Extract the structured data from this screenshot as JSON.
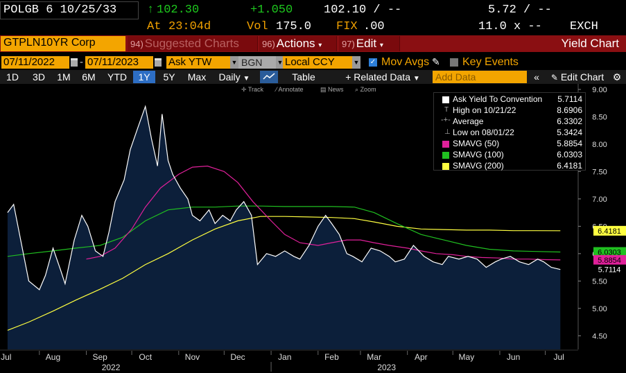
{
  "header": {
    "ticker": "POLGB 6 10/25/33",
    "last_price_arrow": "↑",
    "last_price": "102.30",
    "change": "+1.050",
    "bid_ask_price": "102.10 / --",
    "bid_ask_yield": "5.72 / --",
    "at_label": "At",
    "time": "23:04d",
    "vol_label": "Vol",
    "volume": "175.0",
    "fix_label": "FIX",
    "fix_value": ".00",
    "size": "11.0 x --",
    "exch": "EXCH"
  },
  "menu": {
    "security": "GTPLN10YR Corp",
    "suggested_num": "94)",
    "suggested": "Suggested Charts",
    "actions_num": "96)",
    "actions": "Actions",
    "edit_num": "97)",
    "edit": "Edit",
    "title": "Yield Chart"
  },
  "controls": {
    "start_date": "07/11/2022",
    "end_date": "07/11/2023",
    "field": "Ask YTW",
    "source": "BGN",
    "currency": "Local CCY",
    "mov_avgs": "Mov Avgs",
    "key_events": "Key Events"
  },
  "toolbar": {
    "periods": [
      "1D",
      "3D",
      "1M",
      "6M",
      "YTD",
      "1Y",
      "5Y",
      "Max"
    ],
    "selected_period": "1Y",
    "frequency": "Daily",
    "table": "Table",
    "related": "+ Related Data",
    "add_data_placeholder": "Add Data",
    "edit_chart": "Edit Chart"
  },
  "chart_tools": {
    "track": "Track",
    "annotate": "Annotate",
    "news": "News",
    "zoom": "Zoom"
  },
  "legend": [
    {
      "label": "Ask Yield To Convention",
      "value": "5.7114",
      "color": "#ffffff"
    },
    {
      "label": "High on 10/21/22",
      "value": "8.6906",
      "color": ""
    },
    {
      "label": "Average",
      "value": "6.3302",
      "color": ""
    },
    {
      "label": "Low on 08/01/22",
      "value": "5.3424",
      "color": ""
    },
    {
      "label": "SMAVG (50)",
      "value": "5.8854",
      "color": "#e0209a"
    },
    {
      "label": "SMAVG (100)",
      "value": "6.0303",
      "color": "#20c020"
    },
    {
      "label": "SMAVG (200)",
      "value": "6.4181",
      "color": "#ffff40"
    }
  ],
  "chart_data": {
    "type": "line",
    "title": "",
    "xlabel": "",
    "ylabel": "",
    "ylim": [
      4.25,
      9.0
    ],
    "y_ticks": [
      "4.50",
      "5.00",
      "5.50",
      "6.00",
      "6.50",
      "7.00",
      "7.50",
      "8.00",
      "8.50",
      "9.00"
    ],
    "x_tick_labels": [
      "Jul",
      "Aug",
      "Sep",
      "Oct",
      "Nov",
      "Dec",
      "Jan",
      "Feb",
      "Mar",
      "Apr",
      "May",
      "Jun",
      "Jul"
    ],
    "year_labels": [
      "2022",
      "2023"
    ],
    "series": [
      {
        "name": "Ask Yield To Convention",
        "color": "#ffffff",
        "x": [
          "2022-07-11",
          "2022-07-15",
          "2022-07-20",
          "2022-07-25",
          "2022-08-01",
          "2022-08-05",
          "2022-08-10",
          "2022-08-15",
          "2022-08-18",
          "2022-08-24",
          "2022-08-29",
          "2022-09-02",
          "2022-09-07",
          "2022-09-12",
          "2022-09-16",
          "2022-09-20",
          "2022-09-26",
          "2022-09-30",
          "2022-10-05",
          "2022-10-10",
          "2022-10-14",
          "2022-10-18",
          "2022-10-21",
          "2022-10-25",
          "2022-10-28",
          "2022-11-02",
          "2022-11-07",
          "2022-11-10",
          "2022-11-15",
          "2022-11-21",
          "2022-11-25",
          "2022-11-30",
          "2022-12-05",
          "2022-12-09",
          "2022-12-14",
          "2022-12-19",
          "2022-12-23",
          "2022-12-29",
          "2023-01-04",
          "2023-01-10",
          "2023-01-16",
          "2023-01-20",
          "2023-01-26",
          "2023-02-01",
          "2023-02-06",
          "2023-02-10",
          "2023-02-15",
          "2023-02-20",
          "2023-02-24",
          "2023-03-02",
          "2023-03-08",
          "2023-03-14",
          "2023-03-20",
          "2023-03-24",
          "2023-03-30",
          "2023-04-05",
          "2023-04-12",
          "2023-04-18",
          "2023-04-24",
          "2023-04-28",
          "2023-05-05",
          "2023-05-11",
          "2023-05-17",
          "2023-05-23",
          "2023-05-29",
          "2023-06-02",
          "2023-06-08",
          "2023-06-14",
          "2023-06-20",
          "2023-06-26",
          "2023-06-30",
          "2023-07-05",
          "2023-07-11"
        ],
        "values": [
          6.75,
          6.9,
          6.2,
          5.5,
          5.34,
          5.6,
          6.1,
          5.7,
          5.45,
          6.25,
          6.7,
          6.5,
          6.05,
          5.95,
          6.4,
          6.95,
          7.35,
          7.9,
          8.3,
          8.69,
          8.1,
          7.6,
          8.55,
          7.7,
          7.45,
          7.2,
          7.0,
          6.7,
          6.6,
          6.8,
          6.55,
          6.7,
          6.6,
          6.8,
          6.95,
          6.7,
          5.8,
          6.0,
          5.95,
          6.05,
          5.95,
          5.9,
          6.15,
          6.5,
          6.7,
          6.55,
          6.35,
          6.0,
          5.95,
          5.85,
          6.1,
          6.05,
          5.95,
          5.85,
          5.9,
          6.15,
          5.95,
          5.85,
          5.8,
          5.95,
          5.9,
          5.95,
          5.9,
          5.75,
          5.85,
          5.9,
          5.95,
          5.85,
          5.8,
          5.9,
          5.85,
          5.75,
          5.71
        ]
      },
      {
        "name": "SMAVG (50)",
        "color": "#e0209a",
        "x": [
          "2022-09-01",
          "2022-09-10",
          "2022-09-20",
          "2022-10-01",
          "2022-10-10",
          "2022-10-20",
          "2022-11-01",
          "2022-11-10",
          "2022-11-20",
          "2022-12-01",
          "2022-12-10",
          "2022-12-20",
          "2023-01-01",
          "2023-01-10",
          "2023-01-20",
          "2023-02-01",
          "2023-02-10",
          "2023-02-20",
          "2023-03-01",
          "2023-03-10",
          "2023-03-20",
          "2023-04-01",
          "2023-04-10",
          "2023-04-20",
          "2023-05-01",
          "2023-05-10",
          "2023-05-20",
          "2023-06-01",
          "2023-06-10",
          "2023-06-20",
          "2023-07-01",
          "2023-07-11"
        ],
        "values": [
          5.9,
          5.95,
          6.1,
          6.45,
          6.85,
          7.2,
          7.45,
          7.58,
          7.6,
          7.5,
          7.3,
          6.95,
          6.6,
          6.35,
          6.2,
          6.15,
          6.2,
          6.25,
          6.25,
          6.2,
          6.15,
          6.1,
          6.05,
          6.0,
          5.98,
          5.95,
          5.93,
          5.92,
          5.9,
          5.9,
          5.89,
          5.885
        ]
      },
      {
        "name": "SMAVG (100)",
        "color": "#20c020",
        "x": [
          "2022-07-11",
          "2022-07-25",
          "2022-08-10",
          "2022-08-25",
          "2022-09-10",
          "2022-09-25",
          "2022-10-10",
          "2022-10-25",
          "2022-11-10",
          "2022-11-25",
          "2022-12-10",
          "2022-12-25",
          "2023-01-10",
          "2023-01-25",
          "2023-02-10",
          "2023-02-25",
          "2023-03-10",
          "2023-03-25",
          "2023-04-10",
          "2023-04-25",
          "2023-05-10",
          "2023-05-25",
          "2023-06-10",
          "2023-06-25",
          "2023-07-11"
        ],
        "values": [
          5.95,
          6.0,
          6.05,
          6.1,
          6.15,
          6.3,
          6.6,
          6.8,
          6.85,
          6.85,
          6.87,
          6.87,
          6.86,
          6.86,
          6.86,
          6.85,
          6.75,
          6.55,
          6.35,
          6.25,
          6.15,
          6.08,
          6.05,
          6.04,
          6.03
        ]
      },
      {
        "name": "SMAVG (200)",
        "color": "#ffff40",
        "x": [
          "2022-07-11",
          "2022-07-25",
          "2022-08-10",
          "2022-08-25",
          "2022-09-10",
          "2022-09-25",
          "2022-10-10",
          "2022-10-25",
          "2022-11-10",
          "2022-11-25",
          "2022-12-10",
          "2022-12-25",
          "2023-01-10",
          "2023-01-25",
          "2023-02-10",
          "2023-02-25",
          "2023-03-10",
          "2023-03-25",
          "2023-04-10",
          "2023-04-25",
          "2023-05-10",
          "2023-05-25",
          "2023-06-10",
          "2023-06-25",
          "2023-07-11"
        ],
        "values": [
          4.6,
          4.75,
          4.95,
          5.15,
          5.35,
          5.55,
          5.8,
          6.0,
          6.25,
          6.45,
          6.6,
          6.68,
          6.68,
          6.67,
          6.66,
          6.64,
          6.58,
          6.5,
          6.45,
          6.44,
          6.43,
          6.43,
          6.42,
          6.42,
          6.418
        ]
      }
    ],
    "right_tags": [
      {
        "text": "6.4181",
        "value": 6.4181,
        "color": "#ffff40"
      },
      {
        "text": "6.0303",
        "value": 6.0303,
        "color": "#20c020"
      },
      {
        "text": "5.8854",
        "value": 5.8854,
        "color": "#e0209a"
      },
      {
        "text": "5.7114",
        "value": 5.7114,
        "color": "#ffffff"
      }
    ],
    "grid": false,
    "legend_position": "top-right"
  }
}
